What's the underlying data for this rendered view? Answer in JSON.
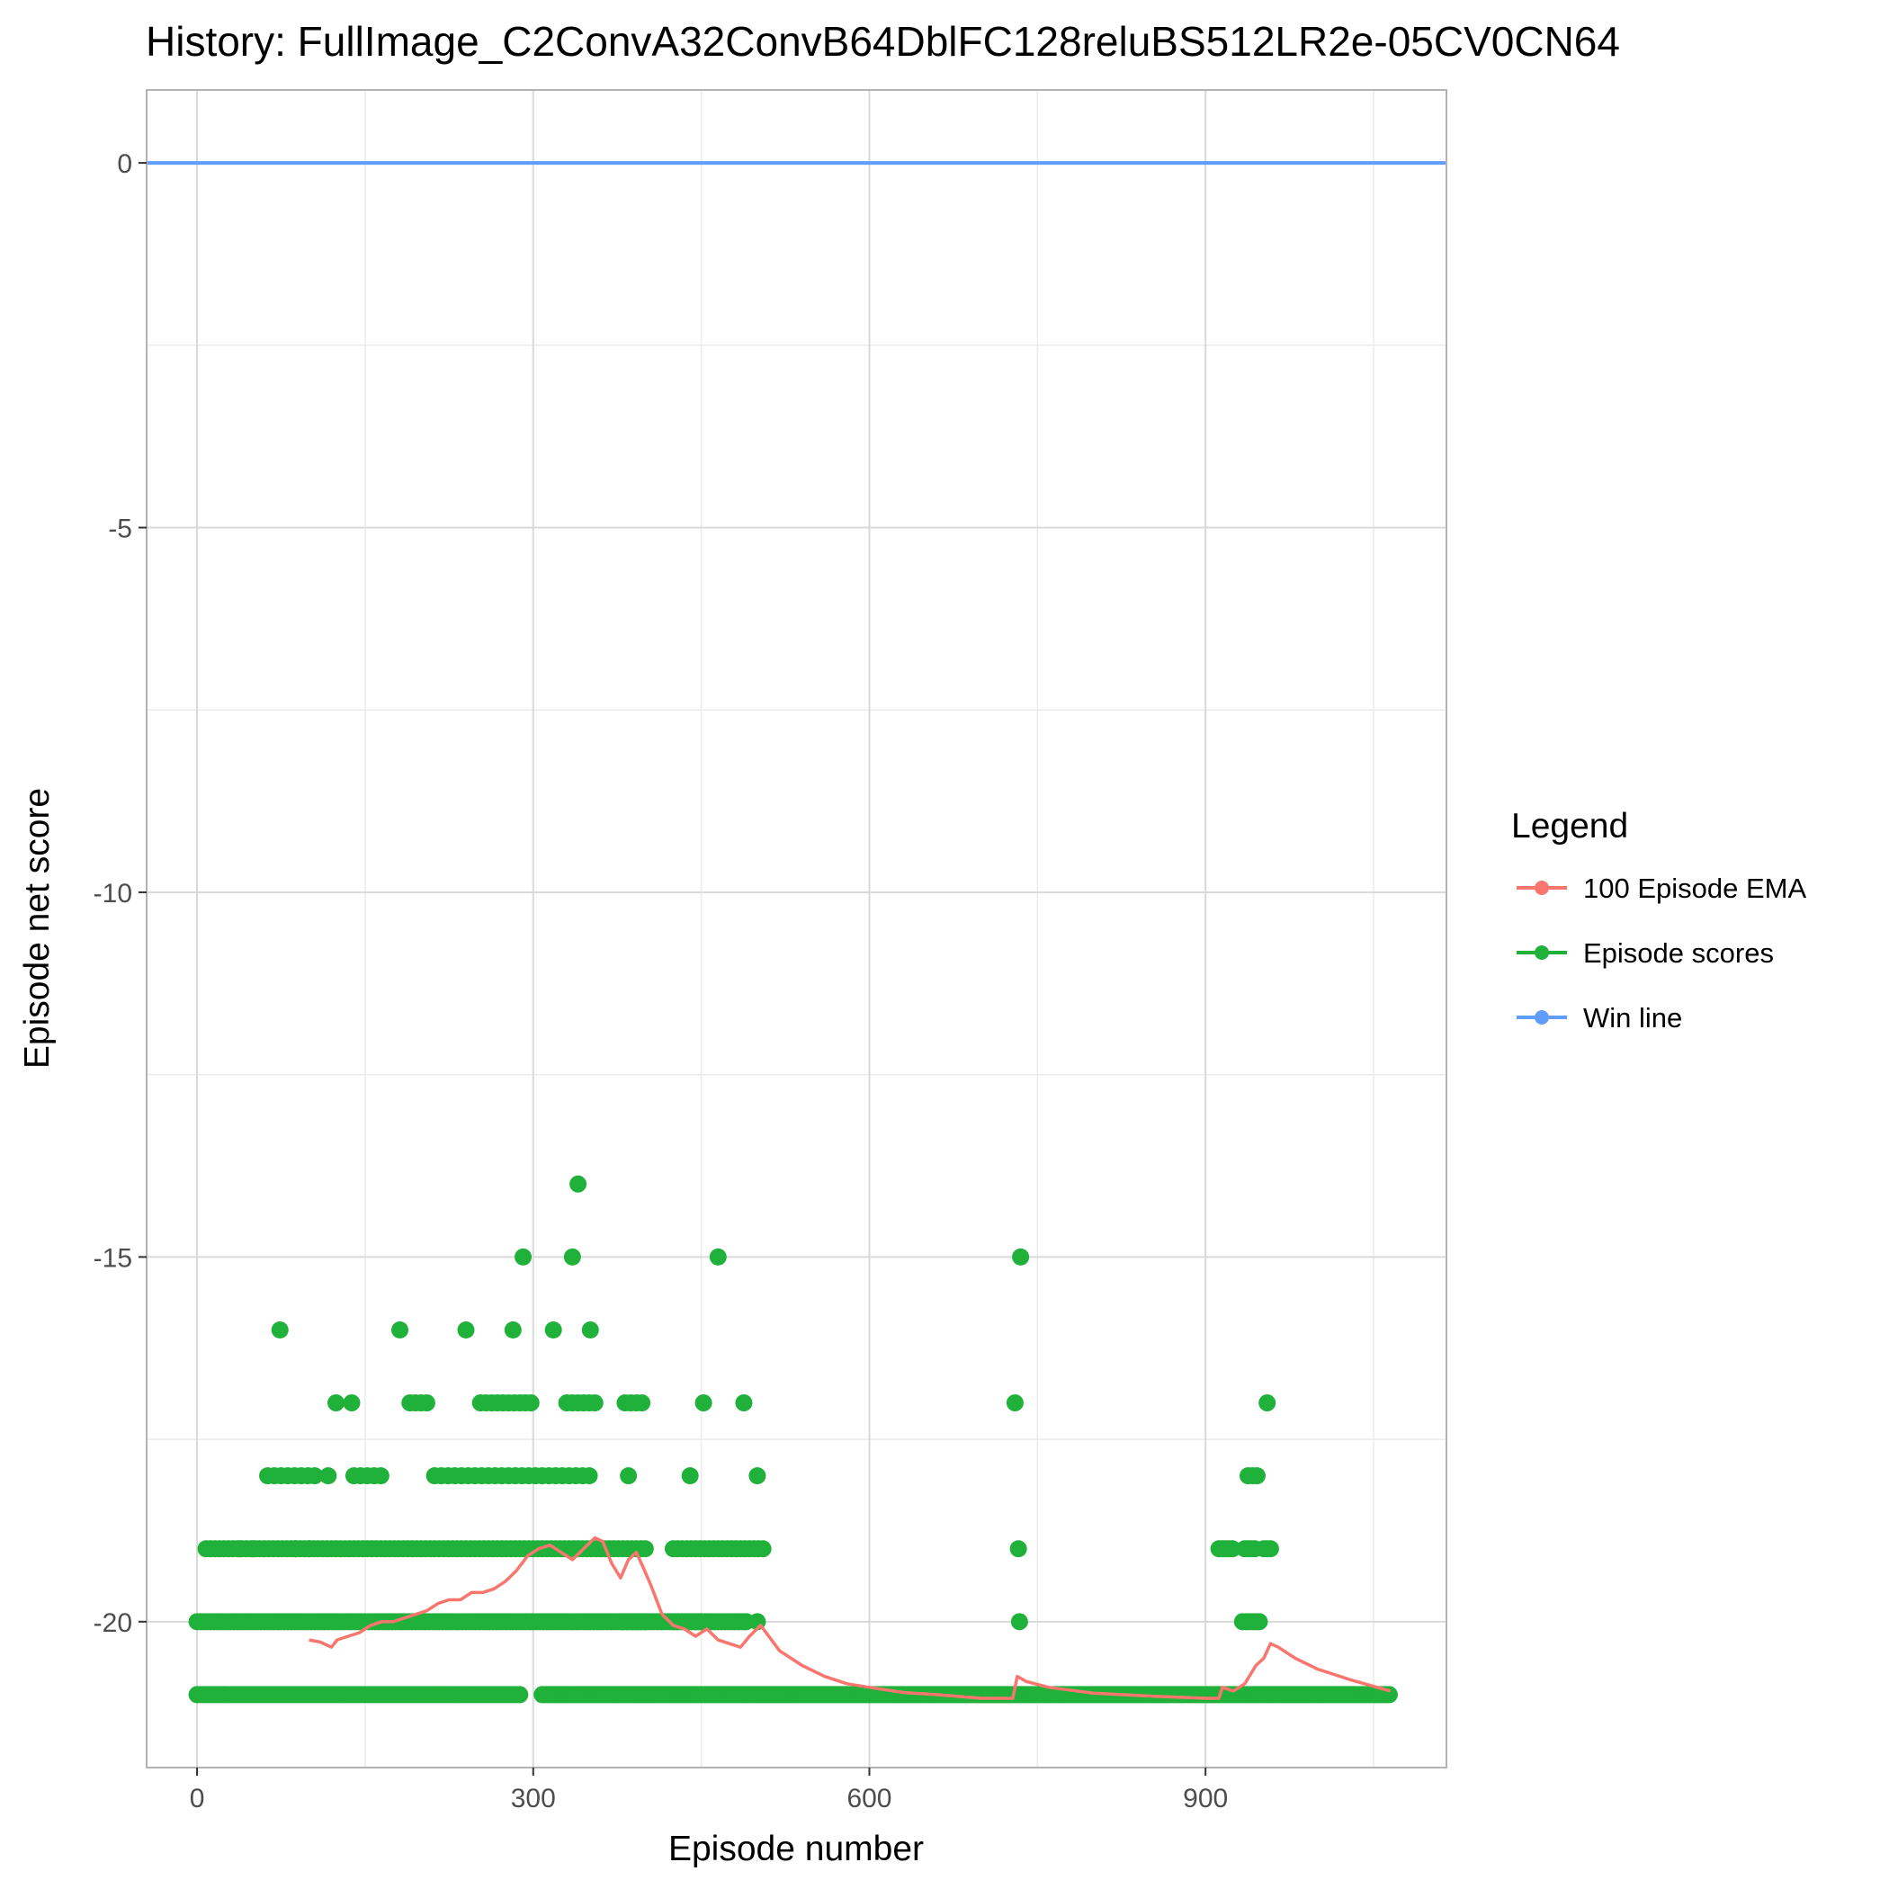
{
  "chart_data": {
    "type": "scatter",
    "title": "History: FullImage_C2ConvA32ConvB64DblFC128reluBS512LR2e-05CV0CN64",
    "xlabel": "Episode number",
    "ylabel": "Episode net score",
    "xlim": [
      -45,
      1115
    ],
    "ylim": [
      -22.0,
      1.0
    ],
    "x_ticks": [
      0,
      300,
      600,
      900
    ],
    "y_ticks": [
      0,
      -5,
      -10,
      -15,
      -20
    ],
    "x_tick_labels": [
      "0",
      "300",
      "600",
      "900"
    ],
    "y_tick_labels": [
      "0",
      "-5",
      "-10",
      "-15",
      "-20"
    ],
    "grid": true,
    "legend": {
      "title": "Legend",
      "position": "right",
      "entries": [
        "100 Episode EMA",
        "Episode scores",
        "Win line"
      ]
    },
    "colors": {
      "ema": "#f8766d",
      "scores": "#1fb13a",
      "win_line": "#619cff"
    },
    "series": [
      {
        "name": "Win line",
        "kind": "hline",
        "y": 0
      },
      {
        "name": "Episode scores",
        "kind": "points",
        "runs": [
          {
            "y": -21,
            "x_from": 0,
            "x_to": 290,
            "step": 3
          },
          {
            "y": -21,
            "x_from": 308,
            "x_to": 1065,
            "step": 2
          },
          {
            "y": -20,
            "x_from": 0,
            "x_to": 490,
            "step": 3
          },
          {
            "y": -20,
            "x_from": 380,
            "x_to": 400,
            "step": 4
          },
          {
            "y": -20,
            "x_from": 425,
            "x_to": 450,
            "step": 4
          },
          {
            "y": -20,
            "x_from": 933,
            "x_to": 950,
            "step": 3
          },
          {
            "y": -19,
            "x_from": 8,
            "x_to": 400,
            "step": 4
          },
          {
            "y": -19,
            "x_from": 425,
            "x_to": 505,
            "step": 4
          },
          {
            "y": -19,
            "x_from": 912,
            "x_to": 924,
            "step": 3
          },
          {
            "y": -19,
            "x_from": 935,
            "x_to": 945,
            "step": 3
          },
          {
            "y": -19,
            "x_from": 952,
            "x_to": 960,
            "step": 3
          },
          {
            "y": -18,
            "x_from": 63,
            "x_to": 110,
            "step": 6
          },
          {
            "y": -18,
            "x_from": 140,
            "x_to": 165,
            "step": 6
          },
          {
            "y": -18,
            "x_from": 212,
            "x_to": 355,
            "step": 6
          },
          {
            "y": -18,
            "x_from": 938,
            "x_to": 946,
            "step": 4
          },
          {
            "y": -17,
            "x_from": 190,
            "x_to": 206,
            "step": 5
          },
          {
            "y": -17,
            "x_from": 253,
            "x_to": 300,
            "step": 5
          },
          {
            "y": -17,
            "x_from": 330,
            "x_to": 358,
            "step": 5
          },
          {
            "y": -17,
            "x_from": 382,
            "x_to": 398,
            "step": 5
          }
        ],
        "points": [
          [
            74,
            -16
          ],
          [
            181,
            -16
          ],
          [
            240,
            -16
          ],
          [
            282,
            -16
          ],
          [
            318,
            -16
          ],
          [
            351,
            -16
          ],
          [
            291,
            -15
          ],
          [
            335,
            -15
          ],
          [
            465,
            -15
          ],
          [
            735,
            -15
          ],
          [
            340,
            -14
          ],
          [
            124,
            -17
          ],
          [
            138,
            -17
          ],
          [
            452,
            -17
          ],
          [
            488,
            -17
          ],
          [
            730,
            -17
          ],
          [
            955,
            -17
          ],
          [
            117,
            -18
          ],
          [
            385,
            -18
          ],
          [
            440,
            -18
          ],
          [
            500,
            -18
          ],
          [
            733,
            -19
          ],
          [
            734,
            -20
          ],
          [
            38,
            -19
          ],
          [
            50,
            -19
          ],
          [
            88,
            -19
          ],
          [
            100,
            -19
          ],
          [
            490,
            -20
          ],
          [
            500,
            -20
          ]
        ]
      },
      {
        "name": "100 Episode EMA",
        "kind": "line",
        "x": [
          100,
          110,
          120,
          125,
          135,
          145,
          155,
          165,
          175,
          185,
          195,
          205,
          215,
          225,
          235,
          245,
          255,
          265,
          275,
          285,
          295,
          305,
          315,
          325,
          335,
          345,
          355,
          362,
          370,
          378,
          385,
          392,
          398,
          405,
          415,
          425,
          435,
          445,
          455,
          465,
          475,
          485,
          493,
          503,
          520,
          540,
          560,
          580,
          600,
          630,
          660,
          700,
          728,
          732,
          740,
          760,
          800,
          850,
          900,
          912,
          915,
          925,
          935,
          945,
          952,
          958,
          965,
          980,
          1000,
          1030,
          1065
        ],
        "values": [
          -20.25,
          -20.28,
          -20.35,
          -20.25,
          -20.2,
          -20.15,
          -20.05,
          -20.0,
          -20.0,
          -19.95,
          -19.9,
          -19.85,
          -19.75,
          -19.7,
          -19.7,
          -19.6,
          -19.6,
          -19.55,
          -19.45,
          -19.3,
          -19.1,
          -19.0,
          -18.95,
          -19.05,
          -19.15,
          -19.0,
          -18.85,
          -18.9,
          -19.2,
          -19.4,
          -19.15,
          -19.05,
          -19.25,
          -19.5,
          -19.9,
          -20.05,
          -20.1,
          -20.2,
          -20.1,
          -20.25,
          -20.3,
          -20.35,
          -20.2,
          -20.05,
          -20.4,
          -20.6,
          -20.75,
          -20.85,
          -20.9,
          -20.97,
          -21.0,
          -21.05,
          -21.05,
          -20.75,
          -20.82,
          -20.9,
          -20.98,
          -21.02,
          -21.05,
          -21.05,
          -20.9,
          -20.95,
          -20.85,
          -20.6,
          -20.5,
          -20.3,
          -20.35,
          -20.5,
          -20.65,
          -20.8,
          -20.95
        ]
      }
    ]
  }
}
